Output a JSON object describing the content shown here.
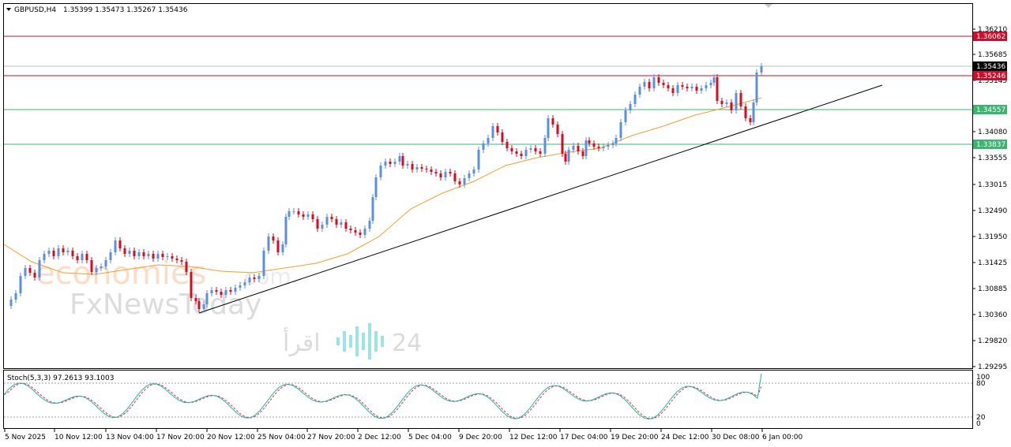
{
  "header": {
    "symbol": "GBPUSD,H4",
    "ohlc": "1.35399 1.35473 1.35267 1.35436"
  },
  "price_axis": {
    "ticks": [
      "1.36210",
      "1.35685",
      "1.35145",
      "1.34080",
      "1.33555",
      "1.33015",
      "1.32490",
      "1.31950",
      "1.31425",
      "1.30885",
      "1.30360",
      "1.29820",
      "1.29295"
    ]
  },
  "price_levels": [
    {
      "value": "1.36062",
      "color": "#c8102e"
    },
    {
      "value": "1.35436",
      "color": "#000000"
    },
    {
      "value": "1.35246",
      "color": "#c8102e"
    },
    {
      "value": "1.34557",
      "color": "#3cb371"
    },
    {
      "value": "1.33837",
      "color": "#3cb371"
    }
  ],
  "time_axis": {
    "labels": [
      "5 Nov 2025",
      "10 Nov 12:00",
      "13 Nov 04:00",
      "17 Nov 20:00",
      "20 Nov 12:00",
      "25 Nov 04:00",
      "27 Nov 20:00",
      "2 Dec 12:00",
      "5 Dec 04:00",
      "9 Dec 20:00",
      "12 Dec 12:00",
      "17 Dec 04:00",
      "19 Dec 20:00",
      "24 Dec 12:00",
      "30 Dec 08:00",
      "6 Jan 00:00"
    ]
  },
  "oscillator": {
    "label": "Stoch(5,3,3) 97.2613 93.1003",
    "levels": [
      "100",
      "80",
      "20",
      "0"
    ]
  },
  "watermarks": {
    "brand1": "economies",
    "brand1_suffix": ".com",
    "brand2": "FxNewsToday",
    "brand3": "اقرأ",
    "brand3_num": "24"
  },
  "colors": {
    "bull": "#5b8fe0",
    "bear": "#d9091e",
    "ma": "#f0a030",
    "trendline": "#000000",
    "stoch_main": "#20b2aa",
    "stoch_signal": "#e03030"
  }
}
